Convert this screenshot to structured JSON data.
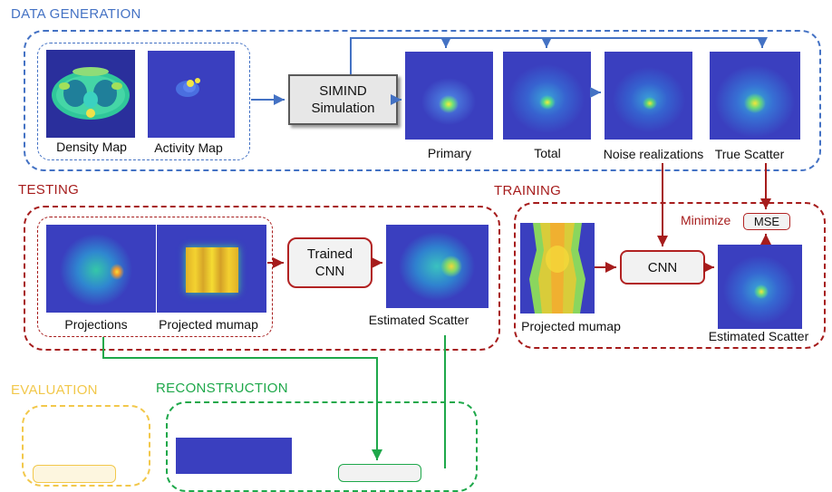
{
  "sections": {
    "data_generation": "DATA GENERATION",
    "testing": "TESTING",
    "training": "TRAINING",
    "evaluation": "EVALUATION",
    "reconstruction": "RECONSTRUCTION"
  },
  "data_generation": {
    "density_map": "Density Map",
    "activity_map": "Activity Map",
    "simind_line1": "SIMIND",
    "simind_line2": "Simulation",
    "primary": "Primary",
    "total": "Total",
    "noise_realizations": "Noise realizations",
    "true_scatter": "True Scatter"
  },
  "testing": {
    "projections": "Projections",
    "projected_mumap": "Projected mumap",
    "trained_cnn_line1": "Trained",
    "trained_cnn_line2": "CNN",
    "estimated_scatter": "Estimated Scatter"
  },
  "training": {
    "minimize": "Minimize",
    "mse": "MSE",
    "cnn": "CNN",
    "projected_mumap": "Projected mumap",
    "estimated_scatter": "Estimated Scatter"
  },
  "colors": {
    "data_generation": "#4472c4",
    "testing_training": "#a61c1c",
    "evaluation": "#f2c84b",
    "reconstruction": "#1ea84a",
    "image_background": "#3a3fbf"
  }
}
